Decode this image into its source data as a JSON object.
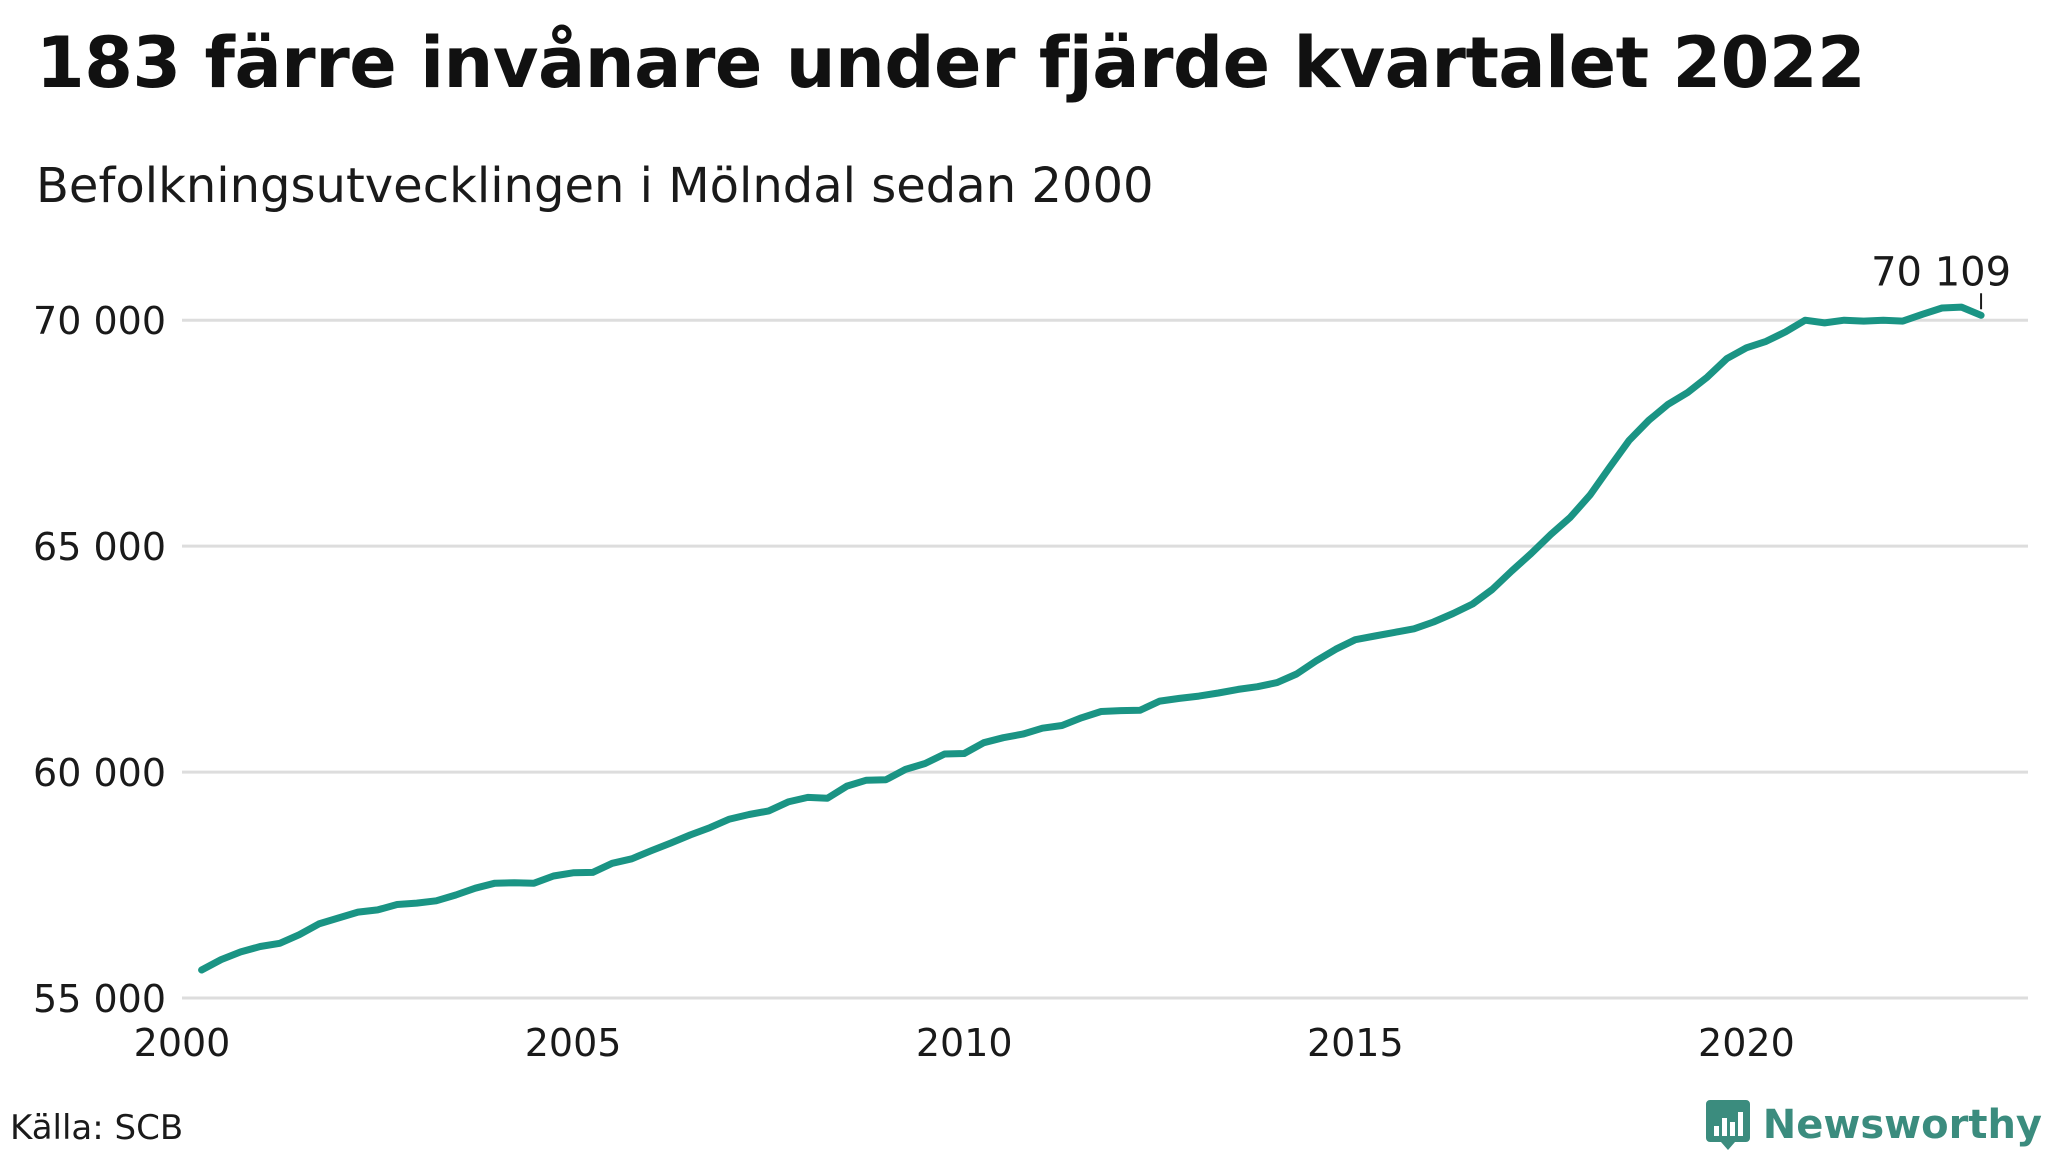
{
  "header": {
    "title": "183 färre invånare under fjärde kvartalet 2022",
    "subtitle": "Befolkningsutvecklingen i Mölndal sedan 2000"
  },
  "footer": {
    "source": "Källa: SCB",
    "brand": "Newsworthy"
  },
  "colors": {
    "line": "#1a9484",
    "grid": "#dddddd",
    "brand": "#3b8c7e"
  },
  "chart_data": {
    "type": "line",
    "title": "183 färre invånare under fjärde kvartalet 2022",
    "subtitle": "Befolkningsutvecklingen i Mölndal sedan 2000",
    "xlabel": "",
    "ylabel": "",
    "xlim": [
      2000,
      2023.6
    ],
    "ylim": [
      55000,
      71000
    ],
    "x_ticks": [
      2000,
      2005,
      2010,
      2015,
      2020
    ],
    "x_tick_labels": [
      "2000",
      "2005",
      "2010",
      "2015",
      "2020"
    ],
    "y_ticks": [
      55000,
      60000,
      65000,
      70000
    ],
    "y_tick_labels": [
      "55 000",
      "60 000",
      "65 000",
      "70 000"
    ],
    "grid": "horizontal",
    "legend": "none",
    "last_value_label": "70 109",
    "series": [
      {
        "x": [
          2000.25,
          2000.5,
          2000.75,
          2001.0,
          2001.25,
          2001.5,
          2001.75,
          2002.0,
          2002.25,
          2002.5,
          2002.75,
          2003.0,
          2003.25,
          2003.5,
          2003.75,
          2004.0,
          2004.25,
          2004.5,
          2004.75,
          2005.0,
          2005.25,
          2005.5,
          2005.75,
          2006.0,
          2006.25,
          2006.5,
          2006.75,
          2007.0,
          2007.25,
          2007.5,
          2007.75,
          2008.0,
          2008.25,
          2008.5,
          2008.75,
          2009.0,
          2009.25,
          2009.5,
          2009.75,
          2010.0,
          2010.25,
          2010.5,
          2010.75,
          2011.0,
          2011.25,
          2011.5,
          2011.75,
          2012.0,
          2012.25,
          2012.5,
          2012.75,
          2013.0,
          2013.25,
          2013.5,
          2013.75,
          2014.0,
          2014.25,
          2014.5,
          2014.75,
          2015.0,
          2015.25,
          2015.5,
          2015.75,
          2016.0,
          2016.25,
          2016.5,
          2016.75,
          2017.0,
          2017.25,
          2017.5,
          2017.75,
          2018.0,
          2018.25,
          2018.5,
          2018.75,
          2019.0,
          2019.25,
          2019.5,
          2019.75,
          2020.0,
          2020.25,
          2020.5,
          2020.75,
          2021.0,
          2021.25,
          2021.5,
          2021.75,
          2022.0,
          2022.25,
          2022.5,
          2022.75,
          2023.0
        ],
        "values": [
          55620,
          55850,
          56020,
          56140,
          56210,
          56400,
          56640,
          56770,
          56900,
          56950,
          57070,
          57100,
          57150,
          57280,
          57430,
          57540,
          57550,
          57540,
          57700,
          57770,
          57780,
          57980,
          58080,
          58260,
          58430,
          58610,
          58770,
          58960,
          59060,
          59140,
          59340,
          59440,
          59420,
          59690,
          59820,
          59830,
          60060,
          60190,
          60400,
          60410,
          60650,
          60760,
          60840,
          60970,
          61030,
          61200,
          61340,
          61360,
          61370,
          61570,
          61630,
          61680,
          61750,
          61830,
          61890,
          61980,
          62170,
          62460,
          62720,
          62930,
          63010,
          63090,
          63170,
          63320,
          63510,
          63720,
          64040,
          64450,
          64840,
          65260,
          65640,
          66130,
          66740,
          67340,
          67780,
          68140,
          68400,
          68740,
          69150,
          69390,
          69530,
          69740,
          70000,
          69940,
          70000,
          69980,
          70000,
          69980,
          70130,
          70270,
          70290,
          70109
        ]
      }
    ]
  }
}
